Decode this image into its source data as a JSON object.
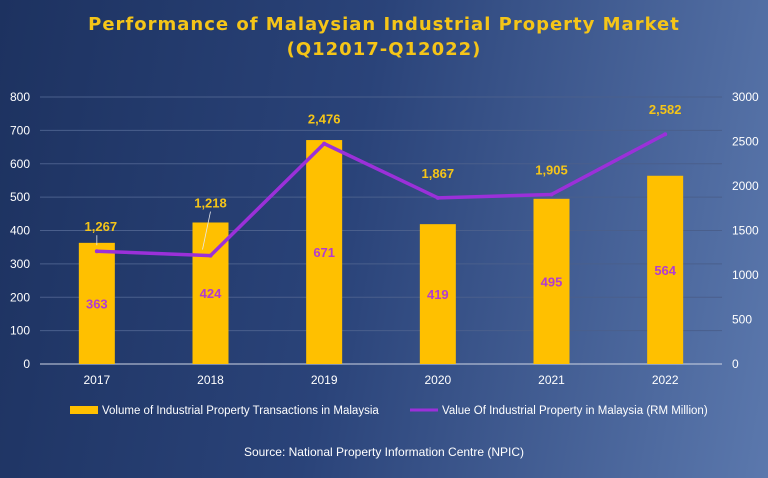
{
  "chart_data": {
    "type": "bar",
    "title_line1": "Performance of Malaysian Industrial Property Market",
    "title_line2": "(Q12017-Q12022)",
    "categories": [
      "2017",
      "2018",
      "2019",
      "2020",
      "2021",
      "2022"
    ],
    "series": [
      {
        "name": "Volume of Industrial Property Transactions in Malaysia",
        "type": "bar",
        "axis": "left",
        "color": "#ffc000",
        "values": [
          363,
          424,
          671,
          419,
          495,
          564
        ],
        "labels": [
          "363",
          "424",
          "671",
          "419",
          "495",
          "564"
        ]
      },
      {
        "name": "Value Of Industrial Property in Malaysia (RM Million)",
        "type": "line",
        "axis": "right",
        "color": "#9b30d9",
        "values": [
          1267,
          1218,
          2476,
          1867,
          1905,
          2582
        ],
        "labels": [
          "1,267",
          "1,218",
          "2,476",
          "1,867",
          "1,905",
          "2,582"
        ]
      }
    ],
    "y_left": {
      "min": 0,
      "max": 800,
      "ticks": [
        "0",
        "100",
        "200",
        "300",
        "400",
        "500",
        "600",
        "700",
        "800"
      ]
    },
    "y_right": {
      "min": 0,
      "max": 3000,
      "ticks": [
        "0",
        "500",
        "1000",
        "1500",
        "2000",
        "2500",
        "3000"
      ]
    },
    "grid": true,
    "legend_position": "bottom",
    "source": "Source: National Property Information Centre (NPIC)",
    "colors": {
      "title": "#f5c518",
      "bar": "#ffc000",
      "line": "#9b30d9",
      "bar_label": "#b23cd1",
      "line_label": "#f5c518",
      "grid": "#4a5f8c"
    }
  }
}
